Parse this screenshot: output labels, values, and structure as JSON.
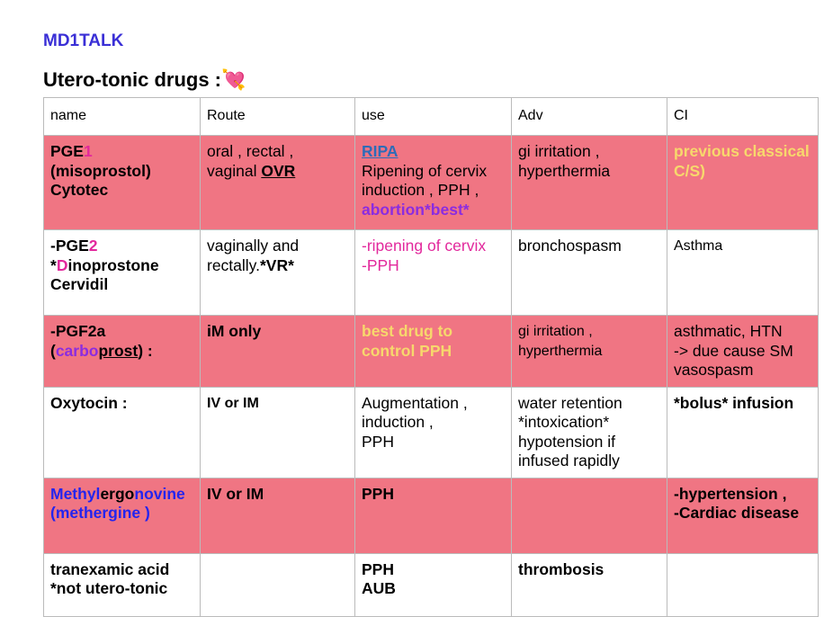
{
  "header": {
    "brand": "MD1TALK",
    "title": "Utero-tonic drugs :",
    "icon": "💘"
  },
  "table": {
    "columns": [
      "name",
      "Route",
      "use",
      "Adv",
      "CI"
    ],
    "rows": [
      [
        [
          "PGE",
          "1",
          "(misoprostol)",
          "Cytotec"
        ],
        [
          "oral , rectal ,",
          "vaginal ",
          "OVR"
        ],
        [
          "RIPA",
          "Ripening of cervix induction , PPH ,",
          "abortion*best*"
        ],
        [
          "gi irritation , hyperthermia"
        ],
        [
          "previous classical C/S)"
        ]
      ],
      [
        [
          "-PGE",
          "2",
          "*",
          "D",
          "inoprostone",
          "Cervidil"
        ],
        [
          "vaginally and rectally.",
          "*VR*"
        ],
        [
          "-ripening of cervix",
          "-PPH"
        ],
        [
          "bronchospasm"
        ],
        [
          "Asthma"
        ]
      ],
      [
        [
          "-PGF2a",
          "(",
          "carbo",
          "prost",
          ") :"
        ],
        [
          "iM only"
        ],
        [
          "best drug to control PPH"
        ],
        [
          "gi irritation , hyperthermia"
        ],
        [
          "asthmatic, HTN",
          "-> due cause SM vasospasm"
        ]
      ],
      [
        [
          "Oxytocin :"
        ],
        [
          "IV or IM"
        ],
        [
          "Augmentation , induction ,",
          "PPH"
        ],
        [
          "water retention",
          "*intoxication*",
          "hypotension if infused rapidly"
        ],
        [
          "*bolus* infusion"
        ]
      ],
      [
        [
          "Methyl",
          "ergo",
          "novine",
          "(methergine )"
        ],
        [
          "IV or IM"
        ],
        [
          "PPH"
        ],
        [],
        [
          "-hypertension ,",
          "-Cardiac disease"
        ]
      ],
      [
        [
          "tranexamic acid",
          "*not utero-tonic"
        ],
        [],
        [
          "PPH",
          "AUB"
        ],
        [
          "thrombosis"
        ],
        []
      ]
    ]
  }
}
